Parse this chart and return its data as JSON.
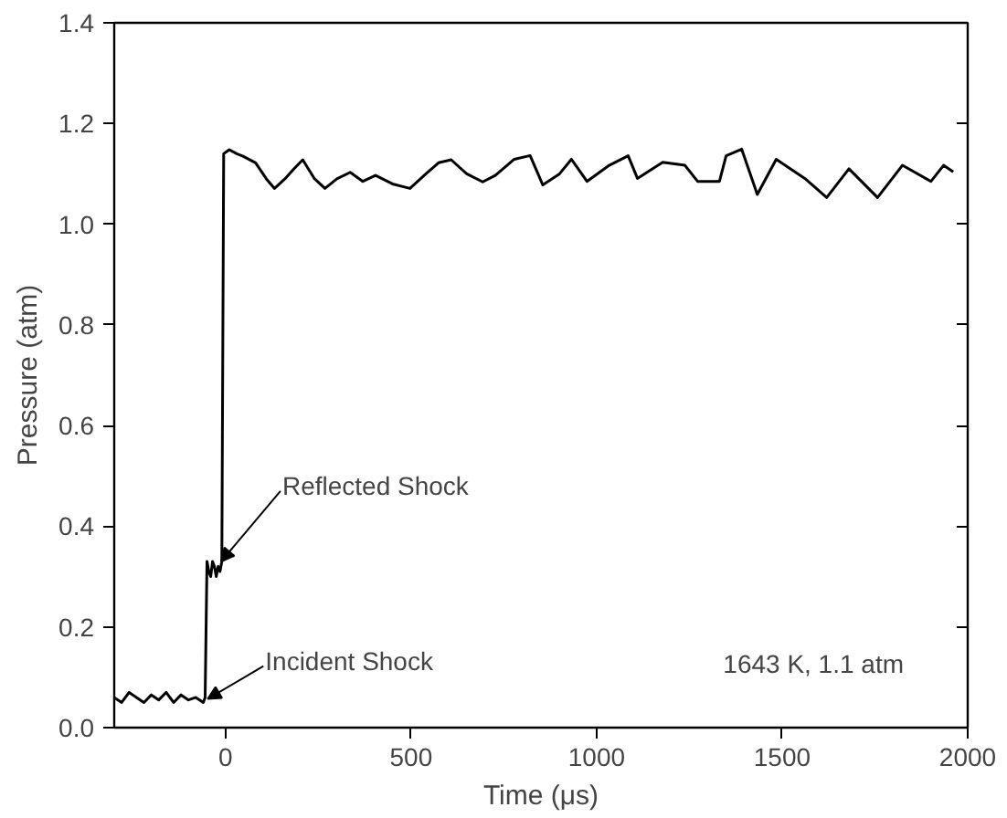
{
  "chart_data": {
    "type": "line",
    "xlabel": "Time (μs)",
    "ylabel": "Pressure (atm)",
    "xlim": [
      -300,
      2000
    ],
    "xticks": [
      0,
      500,
      1000,
      1500,
      2000
    ],
    "ylim": [
      0,
      1.4
    ],
    "yticks": [
      {
        "value": 0,
        "label": "0.0"
      },
      {
        "value": 0.2,
        "label": "0.2"
      },
      {
        "value": 0.4,
        "label": "0.4"
      },
      {
        "value": 0.6,
        "label": "0.6"
      },
      {
        "value": 0.8,
        "label": "0.8"
      },
      {
        "value": 1,
        "label": "1.0"
      },
      {
        "value": 1.2,
        "label": "1.2"
      },
      {
        "value": 1.4,
        "label": "1.4"
      }
    ],
    "grid": false,
    "marker": "none",
    "line_style": "solid",
    "series": [
      {
        "color": "#000000",
        "x": [
          -300,
          -280,
          -260,
          -240,
          -220,
          -200,
          -180,
          -160,
          -140,
          -120,
          -100,
          -80,
          -60,
          -55,
          -50,
          -45,
          -40,
          -35,
          -30,
          -25,
          -20,
          -15,
          -10,
          -5,
          10,
          30,
          47,
          81,
          110,
          132,
          160,
          183,
          208,
          240,
          268,
          300,
          336,
          370,
          404,
          450,
          497,
          540,
          574,
          608,
          650,
          693,
          727,
          778,
          813,
          821,
          855,
          900,
          932,
          974,
          1034,
          1085,
          1110,
          1178,
          1238,
          1272,
          1331,
          1349,
          1391,
          1433,
          1484,
          1561,
          1620,
          1680,
          1757,
          1824,
          1901,
          1935,
          1961
        ],
        "values": [
          0.06,
          0.05,
          0.07,
          0.06,
          0.05,
          0.065,
          0.055,
          0.07,
          0.05,
          0.065,
          0.055,
          0.06,
          0.05,
          0.06,
          0.33,
          0.31,
          0.3,
          0.33,
          0.32,
          0.3,
          0.32,
          0.31,
          0.33,
          1.14,
          1.148,
          1.14,
          1.135,
          1.122,
          1.09,
          1.071,
          1.09,
          1.109,
          1.128,
          1.09,
          1.071,
          1.09,
          1.103,
          1.085,
          1.097,
          1.08,
          1.071,
          1.1,
          1.122,
          1.128,
          1.1,
          1.084,
          1.097,
          1.129,
          1.135,
          1.136,
          1.078,
          1.1,
          1.129,
          1.085,
          1.117,
          1.136,
          1.091,
          1.123,
          1.117,
          1.085,
          1.085,
          1.136,
          1.149,
          1.059,
          1.129,
          1.091,
          1.053,
          1.11,
          1.053,
          1.117,
          1.085,
          1.117,
          1.104
        ]
      }
    ],
    "annotations": [
      {
        "text": "Reflected Shock",
        "x": -12,
        "y": 0.33
      },
      {
        "text": "Incident Shock",
        "x": -48,
        "y": 0.057
      },
      "1643 K, 1.1 atm"
    ]
  }
}
